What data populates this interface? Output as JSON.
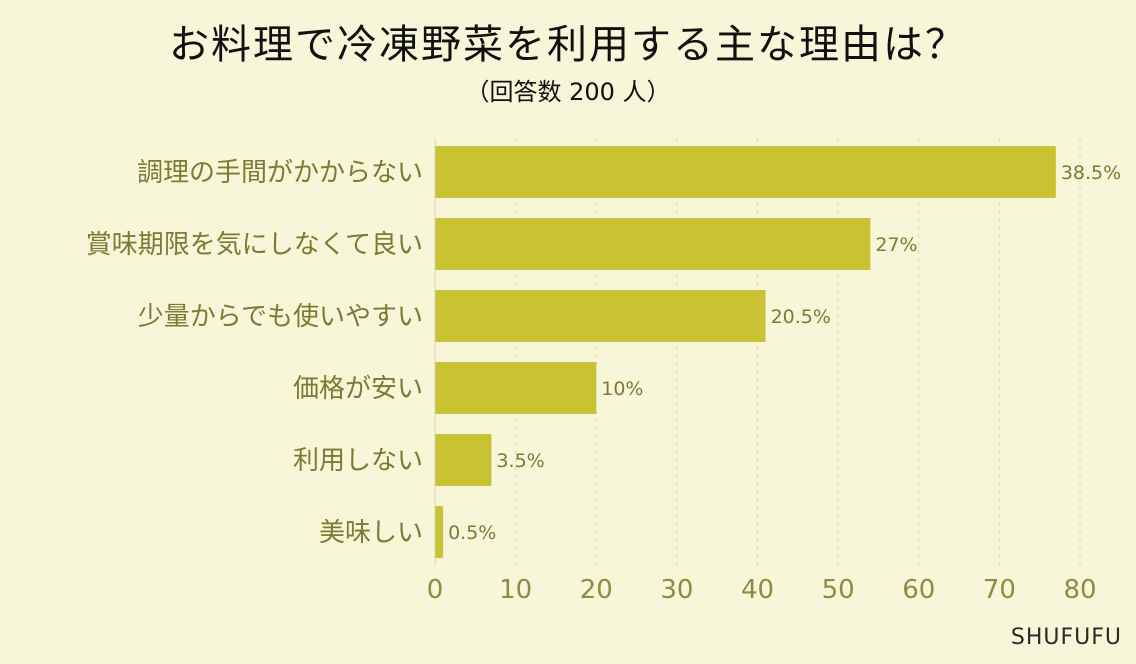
{
  "chart_data": {
    "type": "bar",
    "orientation": "horizontal",
    "title": "お料理で冷凍野菜を利用する主な理由は？",
    "subtitle": "（回答数 200 人）",
    "categories": [
      "調理の手間がかからない",
      "賞味期限を気にしなくて良い",
      "少量からでも使いやすい",
      "価格が安い",
      "利用しない",
      "美味しい"
    ],
    "series": [
      {
        "values": [
          77,
          54,
          41,
          20,
          7,
          1
        ],
        "labels": [
          "38.5%",
          "27%",
          "20.5%",
          "10%",
          "3.5%",
          "0.5%"
        ]
      }
    ],
    "xlim": [
      0,
      80
    ],
    "xticks": [
      0,
      10,
      20,
      30,
      40,
      50,
      60,
      70,
      80
    ],
    "grid": true,
    "colors": {
      "bar": "#c9c333",
      "background": "#f7f6d8",
      "text": "#7e7a34"
    }
  },
  "footer": {
    "brand": "SHUFUFU"
  }
}
